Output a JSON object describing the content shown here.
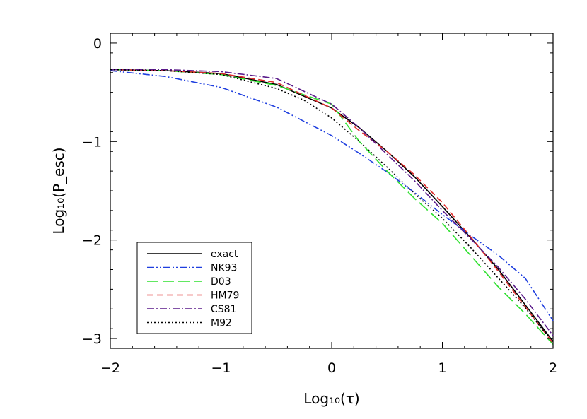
{
  "chart_data": {
    "type": "line",
    "xlabel": "Log₁₀(τ)",
    "ylabel": "Log₁₀(P_esc)",
    "xlim": [
      -2,
      2
    ],
    "ylim": [
      -3.1,
      0.1
    ],
    "xticks": [
      -2,
      -1,
      0,
      1,
      2
    ],
    "yticks": [
      0,
      -1,
      -2,
      -3
    ],
    "tick_labels_x": [
      "−2",
      "−1",
      "0",
      "1",
      "2"
    ],
    "tick_labels_y": [
      "0",
      "−1",
      "−2",
      "−3"
    ],
    "grid": false,
    "legend": "bottom-left",
    "series": [
      {
        "name": "exact",
        "color": "#000000",
        "dash": "solid",
        "x": [
          -2.0,
          -1.5,
          -1.0,
          -0.5,
          0.0,
          0.25,
          0.5,
          0.75,
          1.0,
          1.25,
          1.5,
          1.75,
          2.0
        ],
        "y": [
          -0.27,
          -0.28,
          -0.31,
          -0.42,
          -0.66,
          -0.86,
          -1.1,
          -1.36,
          -1.66,
          -1.97,
          -2.29,
          -2.66,
          -3.03
        ]
      },
      {
        "name": "NK93",
        "color": "#1f3fdf",
        "dash": "dashdotdot",
        "x": [
          -2.0,
          -1.5,
          -1.0,
          -0.5,
          0.0,
          0.25,
          0.5,
          0.75,
          1.0,
          1.25,
          1.5,
          1.75,
          2.0
        ],
        "y": [
          -0.28,
          -0.34,
          -0.45,
          -0.65,
          -0.94,
          -1.12,
          -1.31,
          -1.52,
          -1.74,
          -1.95,
          -2.15,
          -2.39,
          -2.82
        ]
      },
      {
        "name": "D03",
        "color": "#2ee02e",
        "dash": "longdash",
        "x": [
          -2.0,
          -1.5,
          -1.0,
          -0.5,
          0.0,
          0.25,
          0.5,
          0.75,
          1.0,
          1.25,
          1.5,
          1.75,
          2.0
        ],
        "y": [
          -0.27,
          -0.28,
          -0.32,
          -0.43,
          -0.62,
          -1.0,
          -1.3,
          -1.58,
          -1.83,
          -2.15,
          -2.47,
          -2.75,
          -3.06
        ]
      },
      {
        "name": "HM79",
        "color": "#e02a2a",
        "dash": "dash",
        "x": [
          -2.0,
          -1.5,
          -1.0,
          -0.5,
          0.0,
          0.25,
          0.5,
          0.75,
          1.0,
          1.25,
          1.5,
          1.75,
          2.0
        ],
        "y": [
          -0.27,
          -0.28,
          -0.31,
          -0.4,
          -0.66,
          -0.89,
          -1.1,
          -1.34,
          -1.62,
          -1.96,
          -2.31,
          -2.68,
          -3.05
        ]
      },
      {
        "name": "CS81",
        "color": "#5a1a8a",
        "dash": "dashdot",
        "x": [
          -2.0,
          -1.5,
          -1.0,
          -0.5,
          0.0,
          0.25,
          0.5,
          0.75,
          1.0,
          1.25,
          1.5,
          1.75,
          2.0
        ],
        "y": [
          -0.27,
          -0.27,
          -0.29,
          -0.36,
          -0.62,
          -0.86,
          -1.13,
          -1.4,
          -1.7,
          -1.98,
          -2.27,
          -2.6,
          -2.97
        ]
      },
      {
        "name": "M92",
        "color": "#000000",
        "dash": "dot",
        "x": [
          -2.0,
          -1.5,
          -1.0,
          -0.5,
          -0.25,
          0.0,
          0.25,
          0.5,
          0.75,
          1.0,
          1.25,
          1.5,
          1.75,
          2.0
        ],
        "y": [
          -0.27,
          -0.28,
          -0.32,
          -0.46,
          -0.58,
          -0.76,
          -1.0,
          -1.26,
          -1.53,
          -1.78,
          -2.07,
          -2.38,
          -2.69,
          -3.04
        ]
      }
    ]
  }
}
